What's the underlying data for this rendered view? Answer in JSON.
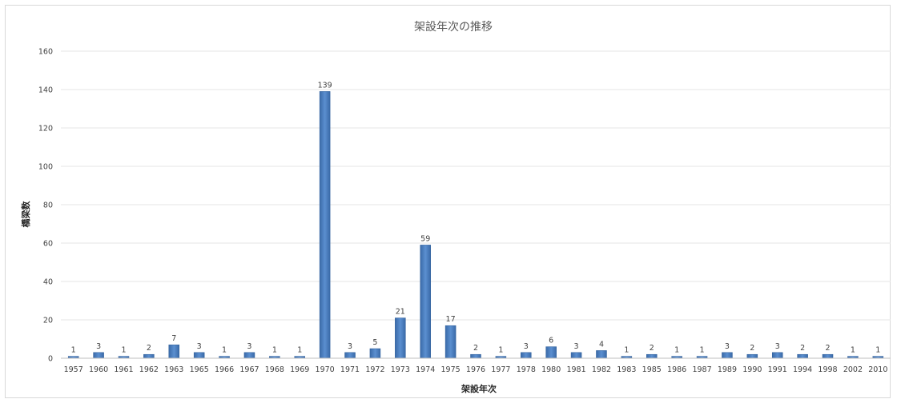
{
  "chart_data": {
    "type": "bar",
    "title": "架設年次の推移",
    "xlabel": "架設年次",
    "ylabel": "橋梁数",
    "categories": [
      "1957",
      "1960",
      "1961",
      "1962",
      "1963",
      "1965",
      "1966",
      "1967",
      "1968",
      "1969",
      "1970",
      "1971",
      "1972",
      "1973",
      "1974",
      "1975",
      "1976",
      "1977",
      "1978",
      "1980",
      "1981",
      "1982",
      "1983",
      "1985",
      "1986",
      "1987",
      "1989",
      "1990",
      "1991",
      "1994",
      "1998",
      "2002",
      "2010"
    ],
    "values": [
      1,
      3,
      1,
      2,
      7,
      3,
      1,
      3,
      1,
      1,
      139,
      3,
      5,
      21,
      59,
      17,
      2,
      1,
      3,
      6,
      3,
      4,
      1,
      2,
      1,
      1,
      3,
      2,
      3,
      2,
      2,
      1,
      1
    ],
    "ylim": [
      0,
      160
    ],
    "yticks": [
      0,
      20,
      40,
      60,
      80,
      100,
      120,
      140,
      160
    ],
    "grid": true,
    "legend": "none",
    "data_labels": true,
    "colors": {
      "bar": "#4a7ebb",
      "bar_dark": "#2f5f9a"
    }
  }
}
